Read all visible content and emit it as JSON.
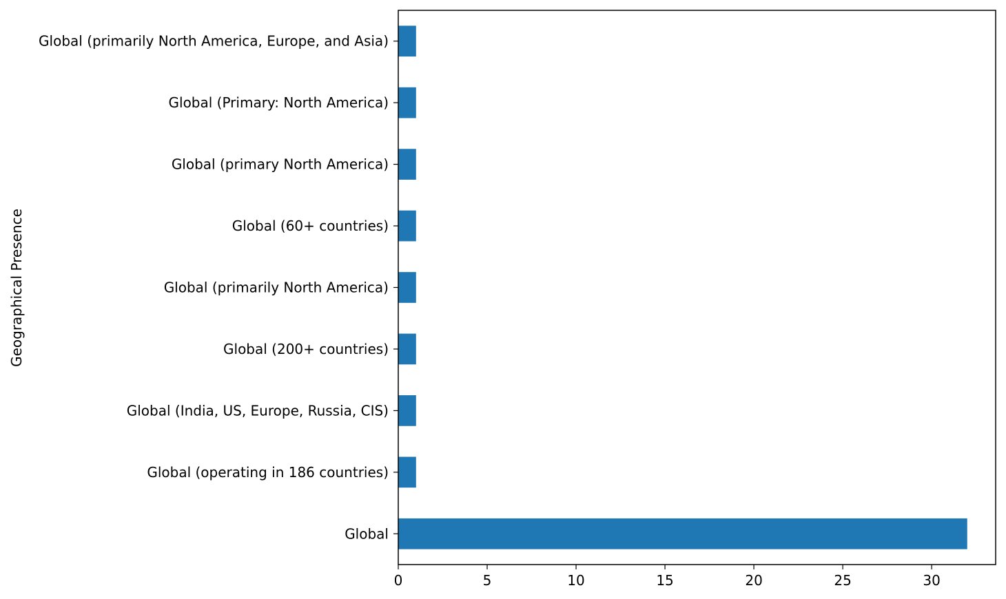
{
  "chart_data": {
    "type": "bar",
    "orientation": "horizontal",
    "categories": [
      "Global",
      "Global (operating in 186 countries)",
      "Global (India, US, Europe, Russia, CIS)",
      "Global (200+ countries)",
      "Global (primarily North America)",
      "Global (60+ countries)",
      "Global (primary North America)",
      "Global (Primary: North America)",
      "Global (primarily North America, Europe, and Asia)"
    ],
    "values": [
      32,
      1,
      1,
      1,
      1,
      1,
      1,
      1,
      1
    ],
    "title": "",
    "xlabel": "",
    "ylabel": "Geographical Presence",
    "xlim": [
      0,
      33.6
    ],
    "xticks": [
      0,
      5,
      10,
      15,
      20,
      25,
      30
    ],
    "grid": false,
    "legend": "none",
    "bar_color": "#1f77b4"
  }
}
